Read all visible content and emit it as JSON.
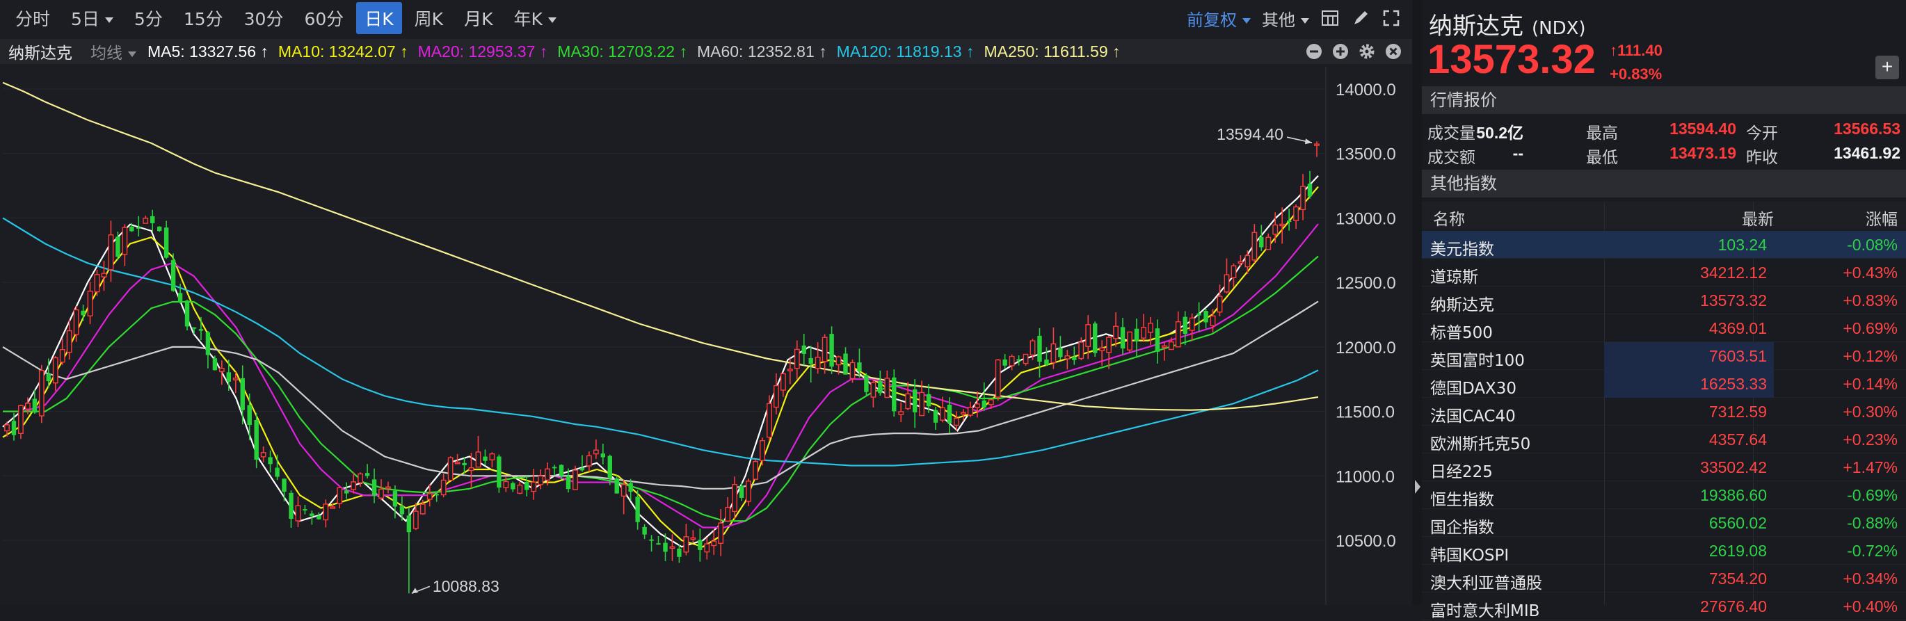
{
  "toolbar": {
    "timeframes": [
      "分时",
      "5日",
      "5分",
      "15分",
      "30分",
      "60分",
      "日K",
      "周K",
      "月K",
      "年K"
    ],
    "active_index": 6,
    "adjust_label": "前复权",
    "other_label": "其他"
  },
  "ma_bar": {
    "name": "纳斯达克",
    "selector": "均线",
    "items": [
      {
        "text": "MA5: 13327.56 ↑",
        "color": "#ffffff"
      },
      {
        "text": "MA10: 13242.07 ↑",
        "color": "#f4f20f"
      },
      {
        "text": "MA20: 12953.37 ↑",
        "color": "#e022e0"
      },
      {
        "text": "MA30: 12703.22 ↑",
        "color": "#2fdc2f"
      },
      {
        "text": "MA60: 12352.81 ↑",
        "color": "#cfcfcf"
      },
      {
        "text": "MA120: 11819.13 ↑",
        "color": "#27c6e6"
      },
      {
        "text": "MA250: 11611.59 ↑",
        "color": "#f6f095"
      }
    ]
  },
  "chart_data": {
    "type": "candlestick",
    "y_ticks": [
      "14000.0",
      "13500.0",
      "13000.0",
      "12500.0",
      "12000.0",
      "11500.0",
      "11000.0",
      "10500.0"
    ],
    "ylim": [
      10088.83,
      14000.0
    ],
    "annotations": [
      {
        "text": "13594.40",
        "value": 13594.4,
        "kind": "high"
      },
      {
        "text": "10088.83",
        "value": 10088.83,
        "kind": "low"
      }
    ],
    "colors": {
      "up": "#ff3b3b",
      "down": "#27d13c"
    },
    "ma_series": [
      {
        "name": "MA5",
        "color": "#ffffff",
        "points": [
          11380,
          11520,
          11800,
          12150,
          12500,
          12780,
          12950,
          12900,
          12500,
          12100,
          11900,
          11600,
          11150,
          10900,
          10650,
          10700,
          10900,
          10950,
          10800,
          10650,
          10900,
          11100,
          11150,
          11050,
          11000,
          10900,
          11000,
          11050,
          11100,
          10950,
          10700,
          10550,
          10450,
          10500,
          10650,
          11000,
          11500,
          11900,
          12000,
          11950,
          11850,
          11700,
          11600,
          11550,
          11500,
          11350,
          11600,
          11800,
          11900,
          11950,
          12000,
          12050,
          12100,
          12050,
          12050,
          12100,
          12200,
          12350,
          12550,
          12800,
          13000,
          13150,
          13327.56
        ]
      },
      {
        "name": "MA10",
        "color": "#f4f20f",
        "points": [
          11300,
          11400,
          11650,
          11950,
          12300,
          12600,
          12800,
          12850,
          12700,
          12300,
          12000,
          11800,
          11450,
          11100,
          10850,
          10750,
          10800,
          10850,
          10850,
          10750,
          10800,
          10950,
          11050,
          11050,
          11000,
          10950,
          10950,
          11000,
          11050,
          11000,
          10850,
          10650,
          10500,
          10450,
          10550,
          10800,
          11200,
          11650,
          11850,
          11900,
          11850,
          11750,
          11650,
          11600,
          11550,
          11450,
          11500,
          11650,
          11800,
          11850,
          11900,
          11950,
          12000,
          12050,
          12050,
          12100,
          12150,
          12250,
          12450,
          12650,
          12850,
          13050,
          13242.07
        ]
      },
      {
        "name": "MA20",
        "color": "#e022e0",
        "points": [
          11500,
          11500,
          11550,
          11750,
          12000,
          12250,
          12450,
          12600,
          12650,
          12550,
          12350,
          12150,
          11850,
          11550,
          11250,
          11050,
          10900,
          10850,
          10850,
          10850,
          10850,
          10900,
          10950,
          11000,
          11000,
          11000,
          11000,
          10950,
          10950,
          10950,
          10900,
          10800,
          10700,
          10600,
          10600,
          10650,
          10850,
          11150,
          11450,
          11650,
          11750,
          11750,
          11700,
          11650,
          11600,
          11550,
          11500,
          11550,
          11650,
          11750,
          11800,
          11850,
          11900,
          11950,
          12000,
          12050,
          12100,
          12150,
          12250,
          12400,
          12550,
          12750,
          12953.37
        ]
      },
      {
        "name": "MA30",
        "color": "#2fdc2f",
        "points": [
          11500,
          11500,
          11500,
          11600,
          11800,
          12000,
          12150,
          12300,
          12350,
          12350,
          12250,
          12100,
          11900,
          11700,
          11450,
          11250,
          11100,
          10950,
          10900,
          10880,
          10870,
          10880,
          10900,
          10950,
          10980,
          11000,
          11000,
          11000,
          10980,
          10950,
          10900,
          10850,
          10780,
          10700,
          10650,
          10650,
          10750,
          10950,
          11200,
          11400,
          11550,
          11650,
          11700,
          11700,
          11680,
          11650,
          11600,
          11600,
          11650,
          11700,
          11750,
          11800,
          11850,
          11900,
          11950,
          12000,
          12050,
          12100,
          12200,
          12300,
          12420,
          12560,
          12703.22
        ]
      },
      {
        "name": "MA60",
        "color": "#cfcfcf",
        "points": [
          12000,
          11900,
          11800,
          11750,
          11800,
          11850,
          11900,
          11950,
          12000,
          12000,
          11980,
          11950,
          11900,
          11800,
          11650,
          11500,
          11350,
          11250,
          11150,
          11100,
          11050,
          11020,
          11000,
          11000,
          11000,
          11000,
          11000,
          11000,
          10990,
          10970,
          10950,
          10930,
          10920,
          10900,
          10900,
          10920,
          10950,
          11050,
          11150,
          11250,
          11300,
          11320,
          11330,
          11330,
          11320,
          11330,
          11350,
          11400,
          11450,
          11500,
          11550,
          11600,
          11650,
          11700,
          11750,
          11800,
          11850,
          11900,
          11950,
          12050,
          12150,
          12250,
          12352.81
        ]
      },
      {
        "name": "MA120",
        "color": "#27c6e6",
        "points": [
          13000,
          12900,
          12800,
          12720,
          12650,
          12600,
          12560,
          12520,
          12480,
          12420,
          12350,
          12270,
          12180,
          12080,
          11950,
          11850,
          11750,
          11680,
          11620,
          11580,
          11550,
          11530,
          11520,
          11500,
          11480,
          11460,
          11430,
          11400,
          11380,
          11350,
          11320,
          11280,
          11240,
          11200,
          11170,
          11140,
          11120,
          11110,
          11100,
          11090,
          11080,
          11080,
          11080,
          11090,
          11100,
          11110,
          11120,
          11140,
          11170,
          11200,
          11240,
          11280,
          11320,
          11360,
          11400,
          11440,
          11480,
          11520,
          11560,
          11620,
          11680,
          11740,
          11819.13
        ]
      },
      {
        "name": "MA250",
        "color": "#f6f095",
        "points": [
          14050,
          13980,
          13900,
          13830,
          13760,
          13700,
          13640,
          13580,
          13500,
          13420,
          13350,
          13300,
          13250,
          13200,
          13140,
          13080,
          13020,
          12960,
          12900,
          12840,
          12780,
          12720,
          12660,
          12600,
          12540,
          12480,
          12420,
          12360,
          12300,
          12240,
          12180,
          12130,
          12080,
          12030,
          11990,
          11950,
          11910,
          11880,
          11850,
          11820,
          11790,
          11760,
          11730,
          11700,
          11680,
          11660,
          11640,
          11620,
          11600,
          11580,
          11560,
          11540,
          11530,
          11520,
          11515,
          11512,
          11510,
          11515,
          11525,
          11540,
          11560,
          11585,
          11611.59
        ]
      }
    ]
  },
  "quote": {
    "name": "纳斯达克",
    "code": "(NDX)",
    "price": "13573.32",
    "change": "111.40",
    "change_pct": "+0.83%",
    "section_title": "行情报价",
    "rows": [
      [
        {
          "l": "成交量",
          "v": "50.2亿"
        },
        {
          "l": "最高",
          "v": "13594.40"
        },
        {
          "l": "今开",
          "v": "13566.53"
        }
      ],
      [
        {
          "l": "成交额",
          "v": "--"
        },
        {
          "l": "最低",
          "v": "13473.19"
        },
        {
          "l": "昨收",
          "v": "13461.92"
        }
      ]
    ]
  },
  "other": {
    "section_title": "其他指数",
    "headers": [
      "名称",
      "最新",
      "涨幅"
    ],
    "rows": [
      {
        "name": "美元指数",
        "last": "103.24",
        "chg": "-0.08%",
        "dir": "dn",
        "hl": true,
        "blk": false
      },
      {
        "name": "道琼斯",
        "last": "34212.12",
        "chg": "+0.43%",
        "dir": "up",
        "hl": false,
        "blk": false
      },
      {
        "name": "纳斯达克",
        "last": "13573.32",
        "chg": "+0.83%",
        "dir": "up",
        "hl": false,
        "blk": false
      },
      {
        "name": "标普500",
        "last": "4369.01",
        "chg": "+0.69%",
        "dir": "up",
        "hl": false,
        "blk": false
      },
      {
        "name": "英国富时100",
        "last": "7603.51",
        "chg": "+0.12%",
        "dir": "up",
        "hl": false,
        "blk": true
      },
      {
        "name": "德国DAX30",
        "last": "16253.33",
        "chg": "+0.14%",
        "dir": "up",
        "hl": false,
        "blk": true
      },
      {
        "name": "法国CAC40",
        "last": "7312.59",
        "chg": "+0.30%",
        "dir": "up",
        "hl": false,
        "blk": false
      },
      {
        "name": "欧洲斯托克50",
        "last": "4357.64",
        "chg": "+0.23%",
        "dir": "up",
        "hl": false,
        "blk": false
      },
      {
        "name": "日经225",
        "last": "33502.42",
        "chg": "+1.47%",
        "dir": "up",
        "hl": false,
        "blk": false
      },
      {
        "name": "恒生指数",
        "last": "19386.60",
        "chg": "-0.69%",
        "dir": "dn",
        "hl": false,
        "blk": false
      },
      {
        "name": "国企指数",
        "last": "6560.02",
        "chg": "-0.88%",
        "dir": "dn",
        "hl": false,
        "blk": false
      },
      {
        "name": "韩国KOSPI",
        "last": "2619.08",
        "chg": "-0.72%",
        "dir": "dn",
        "hl": false,
        "blk": false
      },
      {
        "name": "澳大利亚普通股",
        "last": "7354.20",
        "chg": "+0.34%",
        "dir": "up",
        "hl": false,
        "blk": false
      },
      {
        "name": "富时意大利MIB",
        "last": "27676.40",
        "chg": "+0.40%",
        "dir": "up",
        "hl": false,
        "blk": false
      }
    ]
  }
}
